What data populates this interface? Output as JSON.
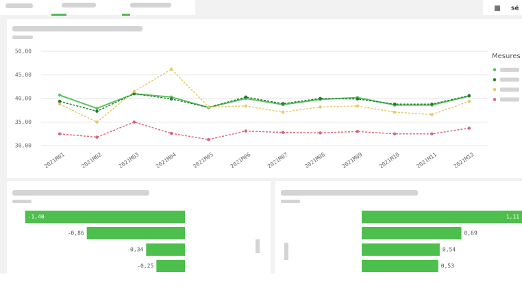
{
  "toolbar": {
    "button": "sé"
  },
  "chart_data": [
    {
      "type": "line",
      "legend_title": "Mesures",
      "legend": "right",
      "grid": true,
      "categories": [
        "2021M01",
        "2021M02",
        "2021M03",
        "2021M04",
        "2021M05",
        "2021M06",
        "2021M07",
        "2021M08",
        "2021M09",
        "2021M10",
        "2021M11",
        "2021M12"
      ],
      "ylim": [
        30,
        50
      ],
      "yticks": [
        {
          "value": 30,
          "label": "30,00"
        },
        {
          "value": 35,
          "label": "35,00"
        },
        {
          "value": 40,
          "label": "40,00"
        },
        {
          "value": 45,
          "label": "45,00"
        },
        {
          "value": 50,
          "label": "50,00"
        }
      ],
      "series": [
        {
          "color": "#5cc15c",
          "dashed": false,
          "values": [
            40.7,
            37.9,
            41.0,
            40.3,
            38.1,
            40.0,
            38.7,
            39.8,
            40.2,
            38.6,
            38.6,
            40.5
          ]
        },
        {
          "color": "#1e7b34",
          "dashed": true,
          "values": [
            39.4,
            37.3,
            41.0,
            39.9,
            38.1,
            40.3,
            38.9,
            40.0,
            39.9,
            38.8,
            38.8,
            40.6
          ]
        },
        {
          "color": "#e6c86e",
          "dashed": true,
          "values": [
            38.8,
            35.0,
            41.5,
            46.2,
            38.2,
            38.4,
            37.1,
            38.2,
            38.4,
            37.1,
            36.6,
            39.4
          ]
        },
        {
          "color": "#d9687a",
          "dashed": true,
          "values": [
            32.5,
            31.8,
            35.0,
            32.6,
            31.3,
            33.1,
            32.8,
            32.7,
            33.0,
            32.5,
            32.5,
            33.7
          ]
        }
      ]
    },
    {
      "type": "hbar",
      "color": "#4cbf4c",
      "xlim": [
        -1.5,
        0
      ],
      "values": [
        -1.4,
        -0.86,
        -0.34,
        -0.25
      ],
      "value_labels": [
        "-1,40",
        "-0,86",
        "-0,34",
        "-0,25"
      ]
    },
    {
      "type": "hbar",
      "color": "#4cbf4c",
      "xlim": [
        0,
        1.1
      ],
      "values": [
        1.11,
        0.69,
        0.54,
        0.53
      ],
      "value_labels": [
        "1,11",
        "0,69",
        "0,54",
        "0,53"
      ]
    }
  ]
}
